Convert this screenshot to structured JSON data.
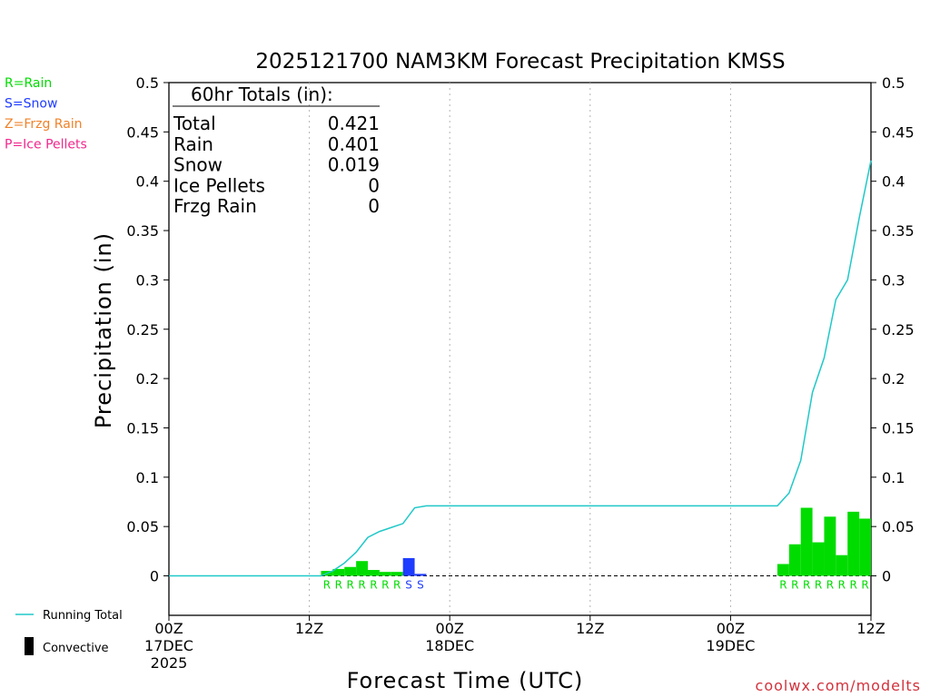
{
  "chart_data": {
    "type": "bar",
    "title": "2025121700 NAM3KM Forecast Precipitation KMSS",
    "xlabel": "Forecast Time (UTC)",
    "ylabel": "Precipitation (in)",
    "ylim": [
      -0.04,
      0.5
    ],
    "yticks": [
      "0",
      "0.05",
      "0.1",
      "0.15",
      "0.2",
      "0.25",
      "0.3",
      "0.35",
      "0.4",
      "0.45",
      "0.5"
    ],
    "ytick_values": [
      0,
      0.05,
      0.1,
      0.15,
      0.2,
      0.25,
      0.3,
      0.35,
      0.4,
      0.45,
      0.5
    ],
    "xlim_hours": [
      0,
      60
    ],
    "xticks": [
      {
        "hour": 0,
        "labels": [
          "00Z",
          "17DEC",
          "2025"
        ]
      },
      {
        "hour": 12,
        "labels": [
          "12Z"
        ]
      },
      {
        "hour": 24,
        "labels": [
          "00Z",
          "18DEC"
        ]
      },
      {
        "hour": 36,
        "labels": [
          "12Z"
        ]
      },
      {
        "hour": 48,
        "labels": [
          "00Z",
          "19DEC"
        ]
      },
      {
        "hour": 60,
        "labels": [
          "12Z"
        ]
      }
    ],
    "grid_hours": [
      12,
      24,
      36,
      48
    ],
    "type_colors": {
      "R": "#00dc00",
      "S": "#1e3cff",
      "Z": "#f08228",
      "P": "#f0288c"
    },
    "bars": [
      {
        "hour": 14,
        "value": 0.005,
        "ptype": "R"
      },
      {
        "hour": 15,
        "value": 0.007,
        "ptype": "R"
      },
      {
        "hour": 16,
        "value": 0.009,
        "ptype": "R"
      },
      {
        "hour": 17,
        "value": 0.015,
        "ptype": "R"
      },
      {
        "hour": 18,
        "value": 0.006,
        "ptype": "R"
      },
      {
        "hour": 19,
        "value": 0.004,
        "ptype": "R"
      },
      {
        "hour": 20,
        "value": 0.004,
        "ptype": "R"
      },
      {
        "hour": 21,
        "value": 0.018,
        "ptype": "S"
      },
      {
        "hour": 22,
        "value": 0.002,
        "ptype": "S"
      },
      {
        "hour": 53,
        "value": 0.012,
        "ptype": "R"
      },
      {
        "hour": 54,
        "value": 0.032,
        "ptype": "R"
      },
      {
        "hour": 55,
        "value": 0.069,
        "ptype": "R"
      },
      {
        "hour": 56,
        "value": 0.034,
        "ptype": "R"
      },
      {
        "hour": 57,
        "value": 0.06,
        "ptype": "R"
      },
      {
        "hour": 58,
        "value": 0.021,
        "ptype": "R"
      },
      {
        "hour": 59,
        "value": 0.065,
        "ptype": "R"
      },
      {
        "hour": 60,
        "value": 0.058,
        "ptype": "R"
      }
    ],
    "running_total": {
      "name": "Running Total",
      "x": [
        0,
        13,
        14,
        15,
        16,
        17,
        18,
        19,
        20,
        21,
        22,
        23,
        51,
        52,
        53,
        54,
        55,
        56,
        57,
        58,
        59,
        60
      ],
      "y": [
        0,
        0,
        0.005,
        0.013,
        0.024,
        0.039,
        0.045,
        0.049,
        0.053,
        0.069,
        0.071,
        0.071,
        0.071,
        0.071,
        0.084,
        0.117,
        0.186,
        0.221,
        0.28,
        0.3,
        0.363,
        0.421
      ]
    },
    "legend": [
      {
        "label": "R=Rain",
        "color": "#00dc00"
      },
      {
        "label": "S=Snow",
        "color": "#1e3cff"
      },
      {
        "label": "Z=Frzg Rain",
        "color": "#f08228"
      },
      {
        "label": "P=Ice Pellets",
        "color": "#f0288c"
      }
    ],
    "bottom_legend": [
      {
        "label": "Running Total",
        "color": "#20c8c8"
      },
      {
        "label": "Convective",
        "color": "#000000"
      }
    ],
    "totals": {
      "header": "60hr Totals (in):",
      "rows": [
        {
          "label": "Total",
          "value": "0.421"
        },
        {
          "label": "Rain",
          "value": "0.401"
        },
        {
          "label": "Snow",
          "value": "0.019"
        },
        {
          "label": "Ice Pellets",
          "value": "0"
        },
        {
          "label": "Frzg Rain",
          "value": "0"
        }
      ]
    },
    "credit": "coolwx.com/modelts"
  }
}
